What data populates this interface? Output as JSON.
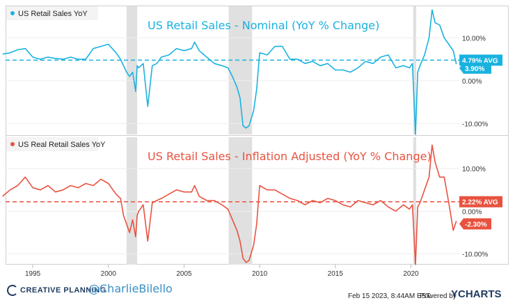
{
  "chart_data": [
    {
      "type": "line",
      "legend": "US Retail Sales YoY",
      "annotation_title": "US Retail Sales - Nominal (YoY % Change)",
      "color": "#19b2e0",
      "avg_value": 4.79,
      "avg_label": "4.79% AVG",
      "last_value": 3.9,
      "last_label": "3.90%",
      "ylim": [
        -12.5,
        17.5
      ],
      "yticks": [
        10,
        0,
        -10
      ],
      "ytick_labels": [
        "10.00%",
        "0.00%",
        "-10.00%"
      ],
      "recessions": [
        [
          2001.2,
          2001.9
        ],
        [
          2007.95,
          2009.5
        ],
        [
          2020.15,
          2020.35
        ]
      ],
      "x": [
        1993.0,
        1993.5,
        1994.0,
        1994.5,
        1995.0,
        1995.5,
        1996.0,
        1996.5,
        1997.0,
        1997.5,
        1998.0,
        1998.5,
        1999.0,
        1999.5,
        2000.0,
        2000.5,
        2000.8,
        2001.0,
        2001.2,
        2001.4,
        2001.6,
        2001.8,
        2001.9,
        2002.0,
        2002.3,
        2002.6,
        2002.9,
        2003.2,
        2003.5,
        2004.0,
        2004.5,
        2005.0,
        2005.5,
        2005.7,
        2006.0,
        2006.5,
        2007.0,
        2007.5,
        2007.9,
        2008.2,
        2008.5,
        2008.7,
        2008.9,
        2009.1,
        2009.3,
        2009.6,
        2009.8,
        2010.0,
        2010.5,
        2011.0,
        2011.5,
        2012.0,
        2012.5,
        2013.0,
        2013.5,
        2014.0,
        2014.5,
        2015.0,
        2015.5,
        2016.0,
        2016.5,
        2017.0,
        2017.5,
        2018.0,
        2018.5,
        2019.0,
        2019.5,
        2019.9,
        2020.1,
        2020.3,
        2020.45,
        2020.6,
        2020.9,
        2021.2,
        2021.4,
        2021.6,
        2021.9,
        2022.2,
        2022.5,
        2022.8,
        2023.0
      ],
      "values": [
        6.2,
        6.5,
        7.2,
        7.5,
        5.5,
        5.0,
        5.5,
        5.2,
        5.0,
        5.5,
        5.0,
        5.0,
        7.5,
        8.0,
        8.5,
        6.5,
        5.0,
        3.5,
        2.0,
        1.0,
        2.0,
        -2.5,
        3.5,
        3.0,
        4.0,
        -6.0,
        3.5,
        4.0,
        5.5,
        6.0,
        7.5,
        7.0,
        7.5,
        9.0,
        7.0,
        5.5,
        4.0,
        3.5,
        3.0,
        1.0,
        -1.5,
        -4.0,
        -10.5,
        -11.0,
        -10.5,
        -7.0,
        -2.0,
        6.5,
        6.0,
        8.0,
        8.0,
        5.0,
        5.0,
        4.0,
        4.5,
        3.5,
        4.0,
        2.5,
        2.5,
        2.0,
        3.0,
        4.5,
        4.0,
        5.5,
        6.0,
        3.0,
        3.5,
        3.0,
        4.0,
        -12.5,
        2.0,
        3.5,
        6.0,
        10.0,
        16.5,
        13.5,
        13.0,
        10.0,
        8.5,
        7.0,
        3.9
      ]
    },
    {
      "type": "line",
      "legend": "US Real Retail Sales YoY",
      "annotation_title": "US Retail Sales - Inflation Adjusted (YoY % Change)",
      "color": "#e8523f",
      "avg_value": 2.22,
      "avg_label": "2.22% AVG",
      "last_value": -2.3,
      "last_label": "-2.30%",
      "ylim": [
        -12.5,
        17.5
      ],
      "yticks": [
        10,
        0,
        -10
      ],
      "ytick_labels": [
        "10.00%",
        "0.00%",
        "-10.00%"
      ],
      "recessions": [
        [
          2001.2,
          2001.9
        ],
        [
          2007.95,
          2009.5
        ],
        [
          2020.15,
          2020.35
        ]
      ],
      "x": [
        1993.0,
        1993.5,
        1994.0,
        1994.5,
        1995.0,
        1995.5,
        1996.0,
        1996.5,
        1997.0,
        1997.5,
        1998.0,
        1998.5,
        1999.0,
        1999.5,
        2000.0,
        2000.5,
        2000.8,
        2001.0,
        2001.2,
        2001.4,
        2001.6,
        2001.8,
        2001.9,
        2002.0,
        2002.3,
        2002.6,
        2002.9,
        2003.2,
        2003.5,
        2004.0,
        2004.5,
        2005.0,
        2005.5,
        2005.7,
        2006.0,
        2006.5,
        2007.0,
        2007.5,
        2007.9,
        2008.2,
        2008.5,
        2008.7,
        2008.9,
        2009.1,
        2009.3,
        2009.6,
        2009.8,
        2010.0,
        2010.5,
        2011.0,
        2011.5,
        2012.0,
        2012.5,
        2013.0,
        2013.5,
        2014.0,
        2014.5,
        2015.0,
        2015.5,
        2016.0,
        2016.5,
        2017.0,
        2017.5,
        2018.0,
        2018.5,
        2019.0,
        2019.5,
        2019.9,
        2020.1,
        2020.3,
        2020.45,
        2020.6,
        2020.9,
        2021.2,
        2021.4,
        2021.6,
        2021.9,
        2022.2,
        2022.5,
        2022.8,
        2023.0
      ],
      "values": [
        3.5,
        5.0,
        6.0,
        8.0,
        5.5,
        5.0,
        6.0,
        4.5,
        5.0,
        6.0,
        5.5,
        6.5,
        6.0,
        7.5,
        6.5,
        4.0,
        3.0,
        -1.0,
        -3.0,
        -5.0,
        -2.0,
        -6.0,
        -1.0,
        0.0,
        1.5,
        -7.0,
        2.0,
        2.5,
        3.0,
        4.0,
        5.0,
        4.5,
        4.5,
        6.0,
        3.5,
        2.5,
        2.5,
        1.5,
        0.5,
        -2.0,
        -4.5,
        -7.0,
        -11.0,
        -12.0,
        -11.5,
        -8.0,
        -3.0,
        6.0,
        5.0,
        5.0,
        4.0,
        3.0,
        2.5,
        1.5,
        2.5,
        2.0,
        3.0,
        2.5,
        1.5,
        1.0,
        2.5,
        2.0,
        1.5,
        2.5,
        1.0,
        0.0,
        1.5,
        0.5,
        1.5,
        -12.5,
        1.0,
        2.0,
        5.0,
        8.0,
        15.5,
        11.5,
        8.0,
        8.0,
        2.0,
        -4.5,
        -2.3
      ]
    }
  ],
  "xaxis": {
    "ticks": [
      1995,
      2000,
      2005,
      2010,
      2015,
      2020
    ],
    "labels": [
      "1995",
      "2000",
      "2005",
      "2010",
      "2015",
      "2020"
    ],
    "xlim": [
      1993.2,
      2023.2
    ]
  },
  "footer": {
    "brand": "CREATIVE PLANNING",
    "handle": "@CharlieBilello",
    "timestamp": "Feb 15 2023, 8:44AM EST.",
    "powered": "Powered by",
    "ycharts": "YCHARTS"
  }
}
